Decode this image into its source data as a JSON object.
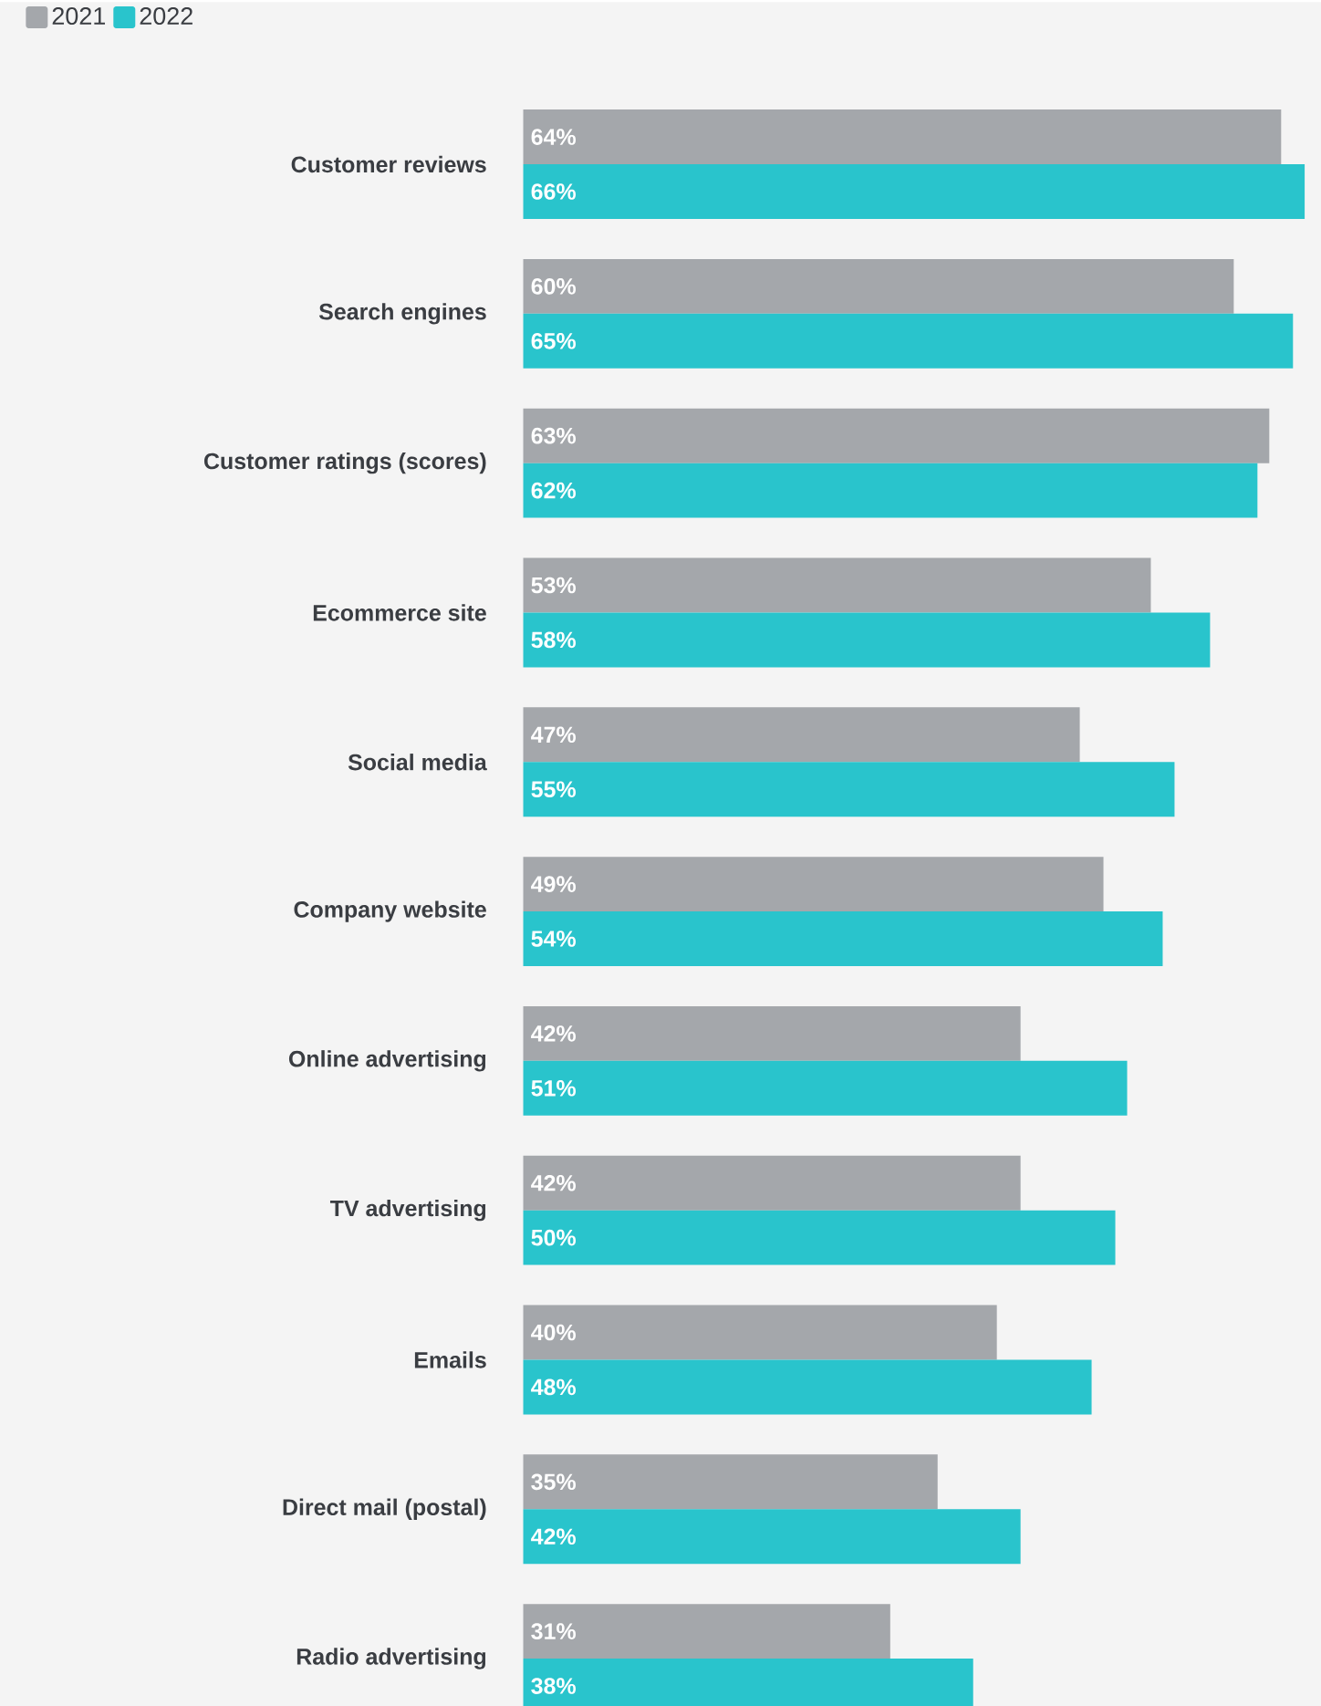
{
  "chart_data": {
    "type": "bar",
    "orientation": "horizontal",
    "legend": "top left",
    "tick_labels": "y",
    "categories": [
      "Customer reviews",
      "Search engines",
      "Customer ratings (scores)",
      "Ecommerce site",
      "Social media",
      "Company website",
      "Online advertising",
      "TV advertising",
      "Emails",
      "Direct mail (postal)",
      "Radio advertising"
    ],
    "series": [
      {
        "name": "2021",
        "color": "#a4a7ab",
        "values": [
          64,
          60,
          63,
          53,
          47,
          49,
          42,
          42,
          40,
          35,
          31
        ],
        "value_labels": [
          "64%",
          "60%",
          "63%",
          "53%",
          "47%",
          "49%",
          "42%",
          "42%",
          "40%",
          "35%",
          "31%"
        ]
      },
      {
        "name": "2022",
        "color": "#29c4cc",
        "values": [
          66,
          65,
          62,
          58,
          55,
          54,
          51,
          50,
          48,
          42,
          38
        ],
        "value_labels": [
          "66%",
          "65%",
          "62%",
          "58%",
          "55%",
          "54%",
          "51%",
          "50%",
          "48%",
          "42%",
          "38%"
        ]
      }
    ]
  }
}
